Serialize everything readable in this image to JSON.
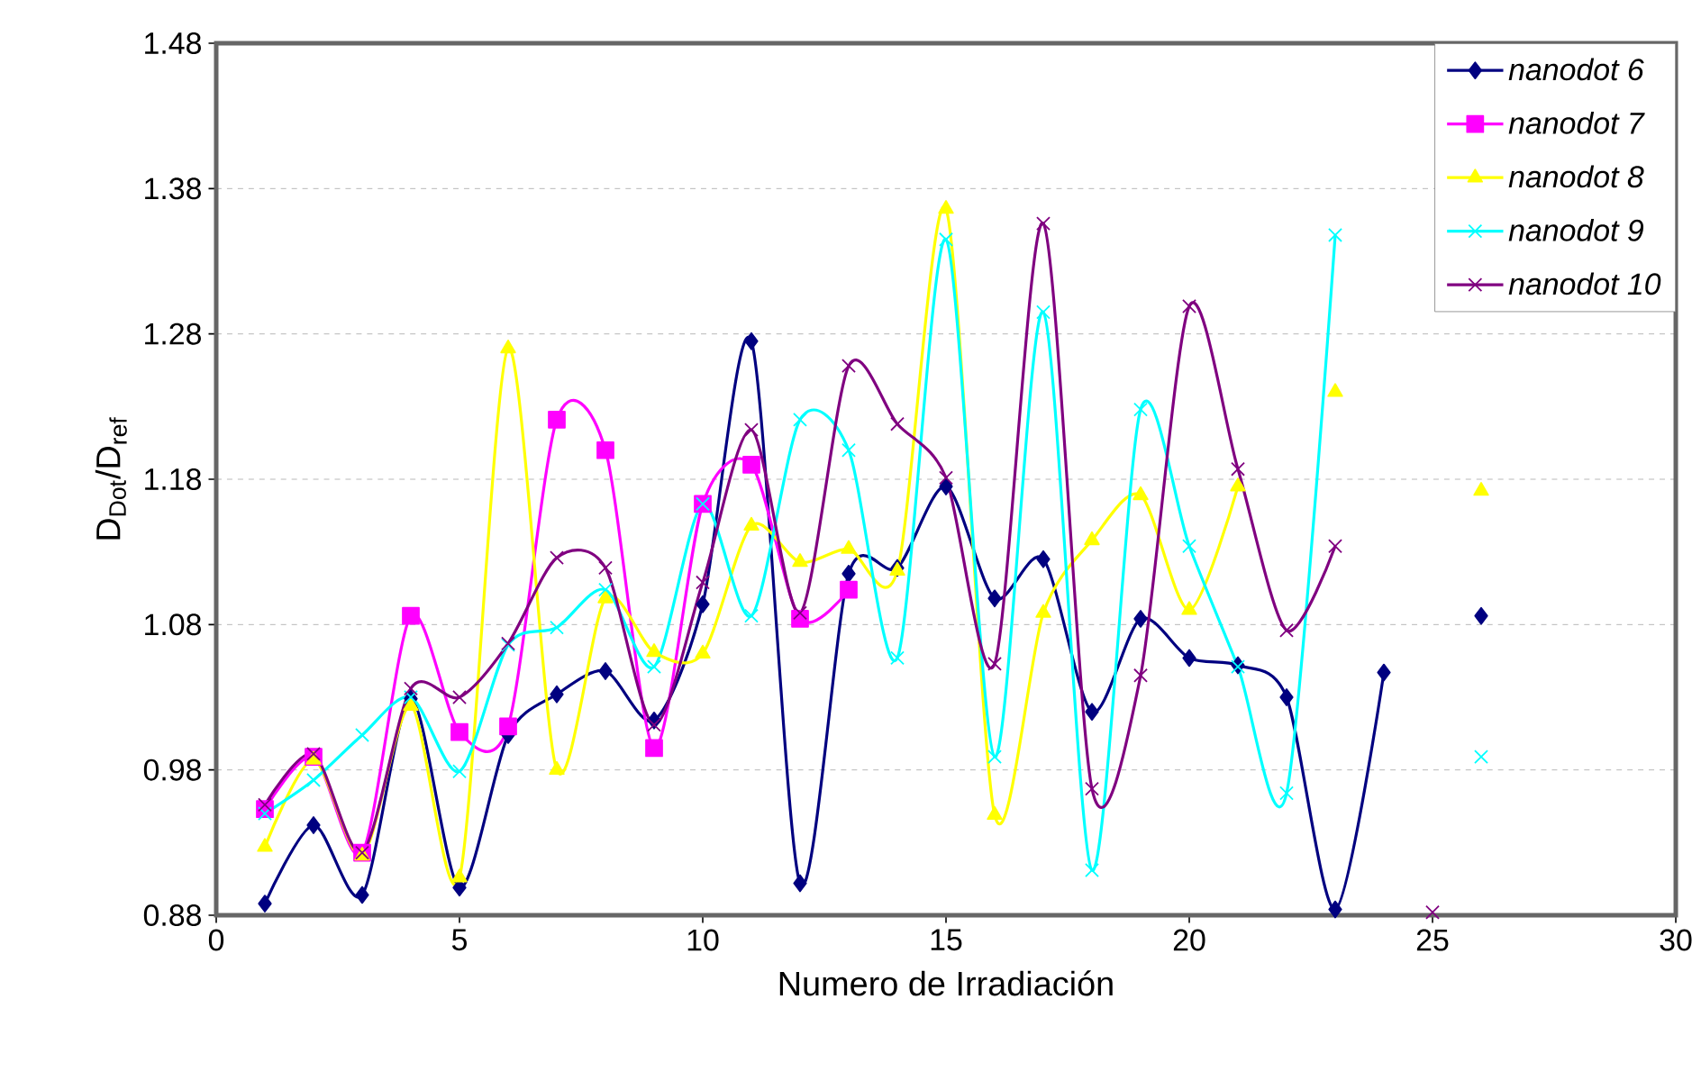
{
  "chart_data": {
    "type": "line",
    "xlabel": "Numero de Irradiación",
    "ylabel": "D$_{Dot}$/D$_{ref}$",
    "x": [
      1,
      2,
      3,
      4,
      5,
      6,
      7,
      8,
      9,
      10,
      11,
      12,
      13,
      14,
      15,
      16,
      17,
      18,
      19,
      20,
      21,
      22,
      23,
      24,
      25,
      26
    ],
    "xlim": [
      0,
      30
    ],
    "xticks": [
      0,
      5,
      10,
      15,
      20,
      25,
      30
    ],
    "ylim": [
      0.88,
      1.48
    ],
    "yticks": [
      {
        "value": 0.88,
        "label": "0.88"
      },
      {
        "value": 0.98,
        "label": "0.98"
      },
      {
        "value": 1.08,
        "label": "1.08"
      },
      {
        "value": 1.18,
        "label": "1.18"
      },
      {
        "value": 1.28,
        "label": "1.28"
      },
      {
        "value": 1.38,
        "label": "1.38"
      },
      {
        "value": 1.48,
        "label": "1.48"
      }
    ],
    "grid": "y",
    "legend": "top right",
    "line_style": "solid",
    "series": [
      {
        "name": "nanodot 6",
        "color": "#000080",
        "marker": "diamond",
        "values": [
          0.888,
          0.942,
          0.894,
          1.029,
          0.899,
          1.004,
          1.032,
          1.048,
          1.014,
          1.094,
          1.275,
          0.902,
          1.115,
          1.119,
          1.175,
          1.098,
          1.125,
          1.02,
          1.084,
          1.057,
          1.052,
          1.03,
          0.884,
          1.047,
          null,
          1.086
        ]
      },
      {
        "name": "nanodot 7",
        "color": "#ff00ff",
        "marker": "square",
        "values": [
          0.953,
          0.989,
          0.923,
          1.086,
          1.006,
          1.01,
          1.221,
          1.2,
          0.995,
          1.163,
          1.19,
          1.084,
          1.104,
          null,
          null,
          null,
          null,
          null,
          null,
          null,
          null,
          null,
          null,
          null,
          null,
          null
        ]
      },
      {
        "name": "nanodot 8",
        "color": "#ffff00",
        "marker": "triangle",
        "values": [
          0.927,
          0.987,
          0.921,
          1.024,
          0.906,
          1.27,
          0.98,
          1.098,
          1.061,
          1.06,
          1.148,
          1.123,
          1.132,
          1.117,
          1.366,
          0.949,
          1.088,
          1.138,
          1.169,
          1.09,
          1.175,
          null,
          1.24,
          null,
          null,
          1.172
        ]
      },
      {
        "name": "nanodot 9",
        "color": "#00ffff",
        "marker": "cross",
        "values": [
          0.95,
          0.973,
          1.004,
          1.03,
          0.979,
          1.066,
          1.078,
          1.104,
          1.051,
          1.163,
          1.086,
          1.221,
          1.2,
          1.057,
          1.345,
          0.989,
          1.295,
          0.911,
          1.228,
          1.134,
          1.051,
          0.964,
          1.348,
          null,
          null,
          0.989
        ]
      },
      {
        "name": "nanodot 10",
        "color": "#800080",
        "marker": "cross",
        "values": [
          0.956,
          0.991,
          0.923,
          1.036,
          1.03,
          1.067,
          1.126,
          1.119,
          1.011,
          1.109,
          1.214,
          1.088,
          1.258,
          1.218,
          1.181,
          1.053,
          1.356,
          0.967,
          1.045,
          1.299,
          1.187,
          1.076,
          1.134,
          null,
          0.882,
          null
        ]
      }
    ]
  }
}
